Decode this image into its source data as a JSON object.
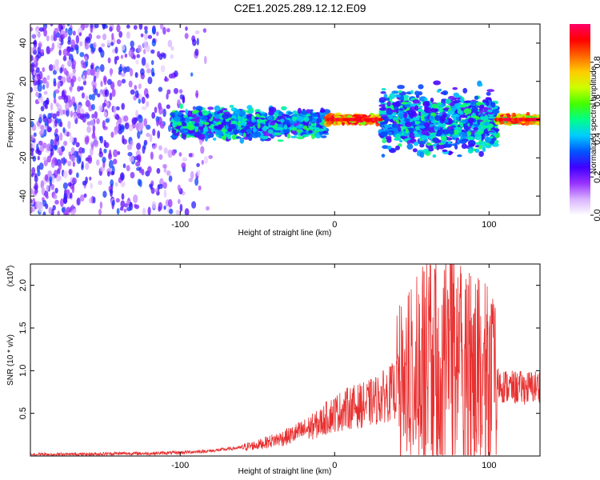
{
  "title": "C2E1.2025.289.12.12.E09",
  "colors": {
    "snr_line": "#e83030",
    "background": "#ffffff",
    "axis": "#000000"
  },
  "chart_data": [
    {
      "type": "heatmap",
      "xlabel": "Height of straight line (km)",
      "ylabel": "Frequency (Hz)",
      "xlim": [
        -197,
        133
      ],
      "ylim": [
        -50,
        50
      ],
      "x_ticks": [
        -100,
        0,
        100
      ],
      "x_tick_labels": [
        "-100",
        "0",
        "100"
      ],
      "y_ticks": [
        -40,
        -20,
        0,
        20,
        40
      ],
      "y_tick_labels": [
        "-40",
        "-20",
        "0",
        "20",
        "40"
      ],
      "colorbar": {
        "label": "Normalized spectral amplitude",
        "range": [
          0,
          1
        ],
        "ticks": [
          0.0,
          0.2,
          0.4,
          0.6,
          0.8
        ],
        "tick_labels": [
          "0.0",
          "0.2",
          "0.4",
          "0.6",
          "0.8"
        ],
        "colormap": [
          "#ffffff",
          "#d9b3ff",
          "#9933ff",
          "#4000ff",
          "#0055ff",
          "#00ccff",
          "#00ff88",
          "#44ff00",
          "#ccff00",
          "#ffcc00",
          "#ff6600",
          "#ff0000",
          "#ff0066"
        ]
      },
      "regions": [
        {
          "x_range": [
            -197,
            -80
          ],
          "freq_range": [
            -50,
            50
          ],
          "amplitude": [
            0.05,
            0.35
          ],
          "note_level": "sparse scattered"
        },
        {
          "x_range": [
            -105,
            -5
          ],
          "freq_range": [
            -12,
            8
          ],
          "amplitude": [
            0.2,
            0.55
          ]
        },
        {
          "x_range": [
            -5,
            30
          ],
          "freq_range": [
            -3,
            3
          ],
          "amplitude": [
            0.6,
            1.0
          ]
        },
        {
          "x_range": [
            30,
            105
          ],
          "freq_range": [
            -22,
            20
          ],
          "amplitude": [
            0.2,
            0.55
          ]
        },
        {
          "x_range": [
            105,
            133
          ],
          "freq_range": [
            -3,
            3
          ],
          "amplitude": [
            0.5,
            0.95
          ]
        }
      ]
    },
    {
      "type": "line",
      "xlabel": "Height of straight line (km)",
      "ylabel": "SNR (10 * v/v)",
      "y_multiplier": "(x10",
      "y_multiplier_exp": "4",
      "y_multiplier_close": ")",
      "xlim": [
        -197,
        133
      ],
      "ylim": [
        0,
        2.25
      ],
      "x_ticks": [
        -100,
        0,
        100
      ],
      "x_tick_labels": [
        "-100",
        "0",
        "100"
      ],
      "y_ticks": [
        0.5,
        1.0,
        1.5,
        2.0
      ],
      "y_tick_labels": [
        "0.5",
        "1.0",
        "1.5",
        "2.0"
      ],
      "series": [
        {
          "x": [
            -197,
            -180,
            -160,
            -140,
            -120,
            -100,
            -90,
            -80,
            -70,
            -60,
            -50,
            -40,
            -30,
            -20,
            -10,
            -5,
            0,
            10,
            20,
            30,
            40,
            45,
            50,
            55,
            60,
            65,
            70,
            75,
            80,
            85,
            90,
            95,
            100,
            105,
            110,
            115,
            120,
            125,
            133
          ],
          "y": [
            0.02,
            0.02,
            0.02,
            0.03,
            0.03,
            0.04,
            0.05,
            0.06,
            0.08,
            0.1,
            0.13,
            0.18,
            0.23,
            0.3,
            0.38,
            0.45,
            0.5,
            0.57,
            0.6,
            0.68,
            0.78,
            0.85,
            0.9,
            1.0,
            1.05,
            1.1,
            1.1,
            1.2,
            1.15,
            1.05,
            1.0,
            0.95,
            0.9,
            0.85,
            0.82,
            0.8,
            0.8,
            0.8,
            0.82
          ]
        }
      ]
    }
  ]
}
